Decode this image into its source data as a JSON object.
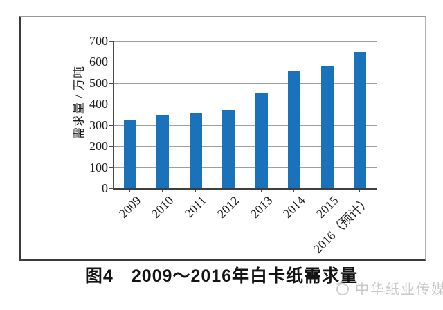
{
  "figure": {
    "caption_label": "图4",
    "caption_title": "2009～2016年白卡纸需求量"
  },
  "watermark": {
    "text": "中华纸业传媒",
    "color": "#c9c9c9"
  },
  "chart_data": {
    "type": "bar",
    "title": "图4　2009～2016年白卡纸需求量",
    "categories": [
      "2009",
      "2010",
      "2011",
      "2012",
      "2013",
      "2014",
      "2015",
      "2016（预计）"
    ],
    "values": [
      325,
      348,
      358,
      370,
      449,
      560,
      578,
      648
    ],
    "xlabel": "",
    "ylabel": "需求量 / 万吨",
    "ylim": [
      0,
      700
    ],
    "yticks": [
      0,
      100,
      200,
      300,
      400,
      500,
      600,
      700
    ],
    "grid": "horizontal",
    "legend": "none",
    "bar_color": "#1a72ba",
    "gridline_color": "#9f9fa3",
    "axis_color": "#4b4b4b",
    "tick_label_color": "#1c1c1c"
  }
}
